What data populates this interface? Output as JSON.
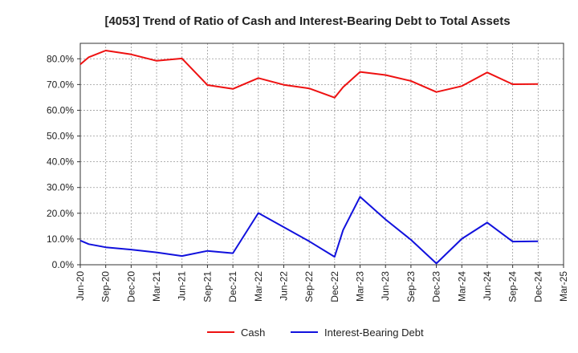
{
  "chart_data": {
    "type": "line",
    "title": "[4053]  Trend of Ratio of Cash and Interest-Bearing Debt to Total Assets",
    "xlabel": "",
    "ylabel": "",
    "x_ticks": [
      "Jun-20",
      "Sep-20",
      "Dec-20",
      "Mar-21",
      "Jun-21",
      "Sep-21",
      "Dec-21",
      "Mar-22",
      "Jun-22",
      "Sep-22",
      "Dec-22",
      "Mar-23",
      "Jun-23",
      "Sep-23",
      "Dec-23",
      "Mar-24",
      "Jun-24",
      "Sep-24",
      "Dec-24",
      "Mar-25"
    ],
    "y_ticks": [
      "0.0%",
      "10.0%",
      "20.0%",
      "30.0%",
      "40.0%",
      "50.0%",
      "60.0%",
      "70.0%",
      "80.0%"
    ],
    "ylim": [
      0,
      86
    ],
    "grid": true,
    "legend_position": "bottom",
    "x": [
      "Jun-20",
      "Jul-20",
      "Sep-20",
      "Dec-20",
      "Mar-21",
      "Jun-21",
      "Sep-21",
      "Dec-21",
      "Mar-22",
      "Jun-22",
      "Sep-22",
      "Dec-22",
      "Jan-23",
      "Mar-23",
      "Jun-23",
      "Sep-23",
      "Dec-23",
      "Mar-24",
      "Jun-24",
      "Sep-24",
      "Dec-24"
    ],
    "series": [
      {
        "name": "Cash",
        "color": "#ee1111",
        "values": [
          77.8,
          80.6,
          83.2,
          81.7,
          79.2,
          80.1,
          69.8,
          68.3,
          72.5,
          69.9,
          68.5,
          64.9,
          69.0,
          74.9,
          73.7,
          71.4,
          67.1,
          69.4,
          74.7,
          70.1,
          70.2
        ]
      },
      {
        "name": "Interest-Bearing Debt",
        "color": "#1111dd",
        "values": [
          9.4,
          8.0,
          6.8,
          5.9,
          4.8,
          3.4,
          5.4,
          4.5,
          20.1,
          14.6,
          9.1,
          3.1,
          13.5,
          26.4,
          17.6,
          9.7,
          0.5,
          10.1,
          16.4,
          9.0,
          9.1
        ]
      }
    ]
  }
}
